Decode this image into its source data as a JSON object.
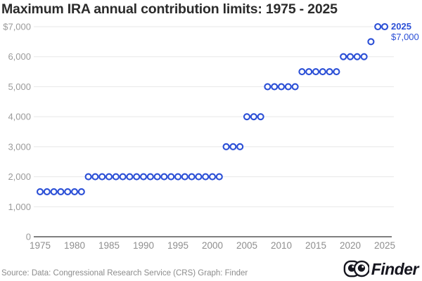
{
  "header": {
    "title": "Maximum IRA annual contribution limits: 1975 - 2025"
  },
  "chart_data": {
    "type": "scatter",
    "title": "Maximum IRA annual contribution limits: 1975 - 2025",
    "xlabel": "",
    "ylabel": "",
    "xlim": [
      1973.5,
      2026.5
    ],
    "ylim": [
      0,
      7000
    ],
    "grid": true,
    "marker": {
      "shape": "open-circle",
      "color": "#2b4fd6",
      "fill": "#ffffff"
    },
    "points": [
      [
        1975,
        1500
      ],
      [
        1976,
        1500
      ],
      [
        1977,
        1500
      ],
      [
        1978,
        1500
      ],
      [
        1979,
        1500
      ],
      [
        1980,
        1500
      ],
      [
        1981,
        1500
      ],
      [
        1982,
        2000
      ],
      [
        1983,
        2000
      ],
      [
        1984,
        2000
      ],
      [
        1985,
        2000
      ],
      [
        1986,
        2000
      ],
      [
        1987,
        2000
      ],
      [
        1988,
        2000
      ],
      [
        1989,
        2000
      ],
      [
        1990,
        2000
      ],
      [
        1991,
        2000
      ],
      [
        1992,
        2000
      ],
      [
        1993,
        2000
      ],
      [
        1994,
        2000
      ],
      [
        1995,
        2000
      ],
      [
        1996,
        2000
      ],
      [
        1997,
        2000
      ],
      [
        1998,
        2000
      ],
      [
        1999,
        2000
      ],
      [
        2000,
        2000
      ],
      [
        2001,
        2000
      ],
      [
        2002,
        3000
      ],
      [
        2003,
        3000
      ],
      [
        2004,
        3000
      ],
      [
        2005,
        4000
      ],
      [
        2006,
        4000
      ],
      [
        2007,
        4000
      ],
      [
        2008,
        5000
      ],
      [
        2009,
        5000
      ],
      [
        2010,
        5000
      ],
      [
        2011,
        5000
      ],
      [
        2012,
        5000
      ],
      [
        2013,
        5500
      ],
      [
        2014,
        5500
      ],
      [
        2015,
        5500
      ],
      [
        2016,
        5500
      ],
      [
        2017,
        5500
      ],
      [
        2018,
        5500
      ],
      [
        2019,
        6000
      ],
      [
        2020,
        6000
      ],
      [
        2021,
        6000
      ],
      [
        2022,
        6000
      ],
      [
        2023,
        6500
      ],
      [
        2024,
        7000
      ],
      [
        2025,
        7000
      ]
    ],
    "xticks": [
      {
        "value": 1975,
        "label": "1975"
      },
      {
        "value": 1980,
        "label": "1980"
      },
      {
        "value": 1985,
        "label": "1985"
      },
      {
        "value": 1990,
        "label": "1990"
      },
      {
        "value": 1995,
        "label": "1995"
      },
      {
        "value": 2000,
        "label": "2000"
      },
      {
        "value": 2005,
        "label": "2005"
      },
      {
        "value": 2010,
        "label": "2010"
      },
      {
        "value": 2015,
        "label": "2015"
      },
      {
        "value": 2020,
        "label": "2020"
      },
      {
        "value": 2025,
        "label": "2025"
      }
    ],
    "yticks": [
      {
        "value": 0,
        "label": "0"
      },
      {
        "value": 1000,
        "label": "1,000"
      },
      {
        "value": 2000,
        "label": "2,000"
      },
      {
        "value": 3000,
        "label": "3,000"
      },
      {
        "value": 4000,
        "label": "4,000"
      },
      {
        "value": 5000,
        "label": "5,000"
      },
      {
        "value": 6000,
        "label": "6,000"
      },
      {
        "value": 7000,
        "label": "$7,000"
      }
    ],
    "annotation": {
      "year_label": "2025",
      "value_label": "$7,000"
    },
    "colors": {
      "point_stroke": "#2b4fd6",
      "annotation": "#2b4fd6",
      "gridline": "#e7e7e7",
      "axis_line": "#7f7f7f",
      "tick_label": "#9a9a9a",
      "title": "#2b2b2b"
    }
  },
  "footer": {
    "source": "Source: Data: Congressional Research Service (CRS) Graph: Finder",
    "brand": "Finder"
  }
}
